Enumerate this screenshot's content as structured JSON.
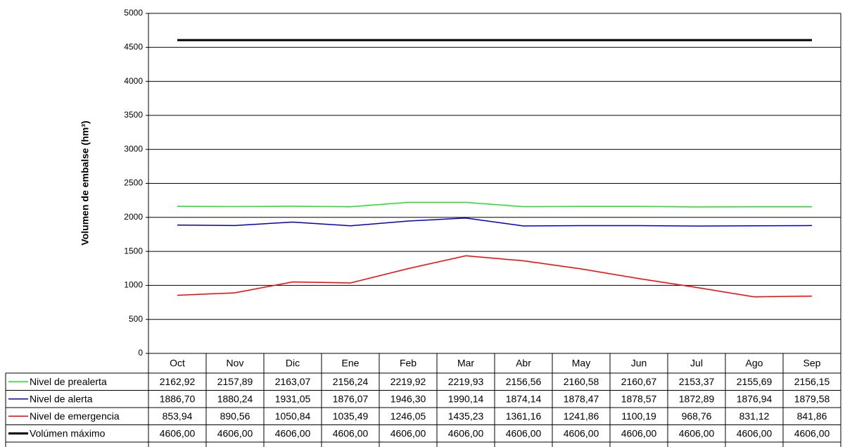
{
  "chart_data": {
    "type": "line",
    "y_label": "Volumen de embalse (hm³)",
    "categories": [
      "Oct",
      "Nov",
      "Dic",
      "Ene",
      "Feb",
      "Mar",
      "Abr",
      "May",
      "Jun",
      "Jul",
      "Ago",
      "Sep"
    ],
    "ylim": [
      0,
      5000
    ],
    "yticks": [
      0,
      500,
      1000,
      1500,
      2000,
      2500,
      3000,
      3500,
      4000,
      4500,
      5000
    ],
    "grid": true,
    "series": [
      {
        "name": "Nivel de prealerta",
        "color": "#22e022",
        "width": 1.5,
        "values": [
          2162.92,
          2157.89,
          2163.07,
          2156.24,
          2219.92,
          2219.93,
          2156.56,
          2160.58,
          2160.67,
          2153.37,
          2155.69,
          2156.15
        ],
        "value_labels": [
          "2162,92",
          "2157,89",
          "2163,07",
          "2156,24",
          "2219,92",
          "2219,93",
          "2156,56",
          "2160,58",
          "2160,67",
          "2153,37",
          "2155,69",
          "2156,15"
        ]
      },
      {
        "name": "Nivel de alerta",
        "color": "#0000cc",
        "width": 1.5,
        "values": [
          1886.7,
          1880.24,
          1931.05,
          1876.07,
          1946.3,
          1990.14,
          1874.14,
          1878.47,
          1878.57,
          1872.89,
          1876.94,
          1879.58
        ],
        "value_labels": [
          "1886,70",
          "1880,24",
          "1931,05",
          "1876,07",
          "1946,30",
          "1990,14",
          "1874,14",
          "1878,47",
          "1878,57",
          "1872,89",
          "1876,94",
          "1879,58"
        ]
      },
      {
        "name": "Nivel de emergencia",
        "color": "#ff0000",
        "width": 1.5,
        "values": [
          853.94,
          890.56,
          1050.84,
          1035.49,
          1246.05,
          1435.23,
          1361.16,
          1241.86,
          1100.19,
          968.76,
          831.12,
          841.86
        ],
        "value_labels": [
          "853,94",
          "890,56",
          "1050,84",
          "1035,49",
          "1246,05",
          "1435,23",
          "1361,16",
          "1241,86",
          "1100,19",
          "968,76",
          "831,12",
          "841,86"
        ]
      },
      {
        "name": "Volúmen máximo",
        "color": "#000000",
        "width": 3,
        "values": [
          4606,
          4606,
          4606,
          4606,
          4606,
          4606,
          4606,
          4606,
          4606,
          4606,
          4606,
          4606
        ],
        "value_labels": [
          "4606,00",
          "4606,00",
          "4606,00",
          "4606,00",
          "4606,00",
          "4606,00",
          "4606,00",
          "4606,00",
          "4606,00",
          "4606,00",
          "4606,00",
          "4606,00"
        ]
      }
    ]
  }
}
